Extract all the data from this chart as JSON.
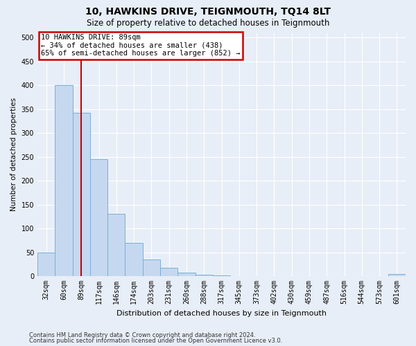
{
  "title": "10, HAWKINS DRIVE, TEIGNMOUTH, TQ14 8LT",
  "subtitle": "Size of property relative to detached houses in Teignmouth",
  "xlabel": "Distribution of detached houses by size in Teignmouth",
  "ylabel": "Number of detached properties",
  "categories": [
    "32sqm",
    "60sqm",
    "89sqm",
    "117sqm",
    "146sqm",
    "174sqm",
    "203sqm",
    "231sqm",
    "260sqm",
    "288sqm",
    "317sqm",
    "345sqm",
    "373sqm",
    "402sqm",
    "430sqm",
    "459sqm",
    "487sqm",
    "516sqm",
    "544sqm",
    "573sqm",
    "601sqm"
  ],
  "values": [
    50,
    400,
    343,
    245,
    130,
    70,
    35,
    17,
    7,
    3,
    1,
    0.5,
    0.5,
    0,
    0,
    0.5,
    0,
    0,
    0,
    0,
    4
  ],
  "bar_color": "#c5d8f0",
  "bar_edge_color": "#7bafd4",
  "vline_x_index": 2,
  "vline_color": "#cc0000",
  "annotation_text": "10 HAWKINS DRIVE: 89sqm\n← 34% of detached houses are smaller (438)\n65% of semi-detached houses are larger (852) →",
  "annotation_box_edgecolor": "#cc0000",
  "annotation_facecolor": "#ffffff",
  "ylim": [
    0,
    510
  ],
  "yticks": [
    0,
    50,
    100,
    150,
    200,
    250,
    300,
    350,
    400,
    450,
    500
  ],
  "bg_color": "#e8eef7",
  "grid_color": "#ffffff",
  "fig_facecolor": "#e8eef7",
  "title_fontsize": 10,
  "subtitle_fontsize": 8.5,
  "xlabel_fontsize": 8,
  "ylabel_fontsize": 7.5,
  "tick_fontsize": 7,
  "annotation_fontsize": 7.5,
  "footer_line1": "Contains HM Land Registry data © Crown copyright and database right 2024.",
  "footer_line2": "Contains public sector information licensed under the Open Government Licence v3.0.",
  "footer_fontsize": 6
}
